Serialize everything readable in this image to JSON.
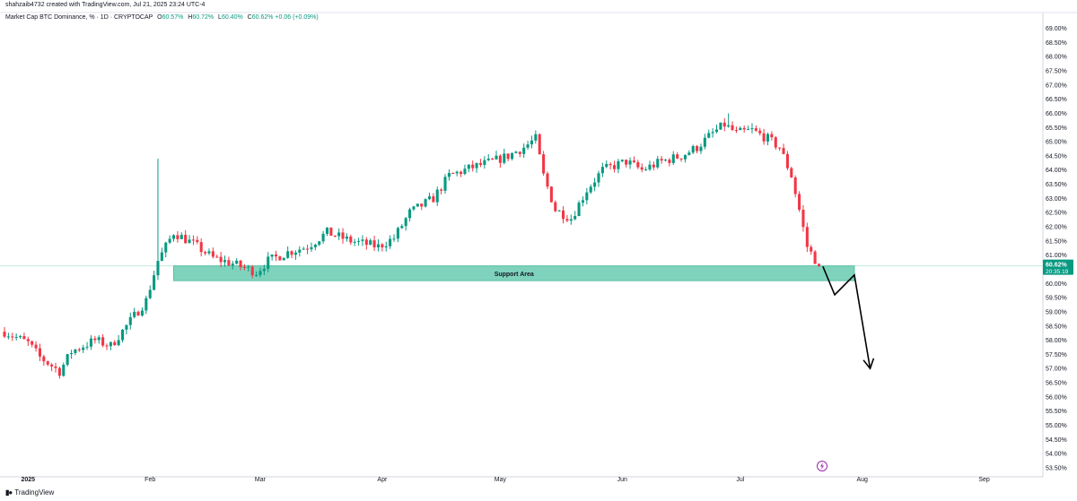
{
  "header": {
    "byline": "shahzaib4732 created with TradingView.com, Jul 21, 2025 23:24 UTC-4"
  },
  "legend": {
    "symbol": "Market Cap BTC Dominance, % · 1D · CRYPTOCAP",
    "open_label": "O",
    "open": "60.57%",
    "high_label": "H",
    "high": "60.72%",
    "low_label": "L",
    "low": "60.40%",
    "close_label": "C",
    "close": "60.62%",
    "change": "+0.06 (+0.09%)"
  },
  "price_tag": {
    "price": "60.62%",
    "countdown": "20:35:19"
  },
  "footer": {
    "brand": "TradingView"
  },
  "colors": {
    "up": "#089981",
    "down": "#f23645",
    "zone": "#7fd3bd",
    "zone_border": "#5bbfa5",
    "arrow": "#000000",
    "last_line": "#bfe7dc"
  },
  "chart_data": {
    "type": "candlestick",
    "title": "Market Cap BTC Dominance, % · 1D · CRYPTOCAP",
    "y_unit": "%",
    "ylim": [
      53.5,
      69.3
    ],
    "y_ticks": [
      "69.00%",
      "68.50%",
      "68.00%",
      "67.50%",
      "67.00%",
      "66.50%",
      "66.00%",
      "65.50%",
      "65.00%",
      "64.50%",
      "64.00%",
      "63.50%",
      "63.00%",
      "62.50%",
      "62.00%",
      "61.50%",
      "61.00%",
      "60.50%",
      "60.00%",
      "59.50%",
      "59.00%",
      "58.50%",
      "58.00%",
      "57.50%",
      "57.00%",
      "56.50%",
      "56.00%",
      "55.50%",
      "55.00%",
      "54.50%",
      "54.00%",
      "53.50%"
    ],
    "x_labels": [
      {
        "label": "2025",
        "date": "2025-01-01",
        "bold": true
      },
      {
        "label": "Feb",
        "date": "2025-02-01"
      },
      {
        "label": "Mar",
        "date": "2025-03-01"
      },
      {
        "label": "Apr",
        "date": "2025-04-01"
      },
      {
        "label": "May",
        "date": "2025-05-01"
      },
      {
        "label": "Jun",
        "date": "2025-06-01"
      },
      {
        "label": "Jul",
        "date": "2025-07-01"
      },
      {
        "label": "Aug",
        "date": "2025-08-01"
      },
      {
        "label": "Sep",
        "date": "2025-09-01"
      }
    ],
    "x_start": "2024-12-26",
    "x_end": "2025-09-15",
    "anchors": [
      [
        "2024-12-26",
        58.3
      ],
      [
        "2025-01-01",
        57.9
      ],
      [
        "2025-01-04",
        57.4
      ],
      [
        "2025-01-09",
        56.9
      ],
      [
        "2025-01-12",
        57.6
      ],
      [
        "2025-01-18",
        58.0
      ],
      [
        "2025-01-22",
        57.8
      ],
      [
        "2025-01-26",
        58.5
      ],
      [
        "2025-01-31",
        59.4
      ],
      [
        "2025-02-03",
        60.8
      ],
      [
        "2025-02-07",
        61.8
      ],
      [
        "2025-02-12",
        61.4
      ],
      [
        "2025-02-17",
        60.9
      ],
      [
        "2025-02-22",
        60.7
      ],
      [
        "2025-02-28",
        60.4
      ],
      [
        "2025-03-03",
        60.8
      ],
      [
        "2025-03-08",
        61.1
      ],
      [
        "2025-03-13",
        61.3
      ],
      [
        "2025-03-18",
        61.8
      ],
      [
        "2025-03-24",
        61.5
      ],
      [
        "2025-03-31",
        61.3
      ],
      [
        "2025-04-04",
        61.6
      ],
      [
        "2025-04-08",
        62.5
      ],
      [
        "2025-04-14",
        63.0
      ],
      [
        "2025-04-18",
        63.8
      ],
      [
        "2025-04-24",
        64.1
      ],
      [
        "2025-04-29",
        64.3
      ],
      [
        "2025-05-03",
        64.5
      ],
      [
        "2025-05-07",
        64.8
      ],
      [
        "2025-05-10",
        65.1
      ],
      [
        "2025-05-12",
        63.8
      ],
      [
        "2025-05-15",
        62.6
      ],
      [
        "2025-05-19",
        62.3
      ],
      [
        "2025-05-23",
        63.3
      ],
      [
        "2025-05-27",
        64.0
      ],
      [
        "2025-06-02",
        64.3
      ],
      [
        "2025-06-06",
        64.0
      ],
      [
        "2025-06-11",
        64.3
      ],
      [
        "2025-06-16",
        64.5
      ],
      [
        "2025-06-20",
        64.8
      ],
      [
        "2025-06-24",
        65.3
      ],
      [
        "2025-06-27",
        65.6
      ],
      [
        "2025-06-30",
        65.3
      ],
      [
        "2025-07-04",
        65.4
      ],
      [
        "2025-07-08",
        65.1
      ],
      [
        "2025-07-11",
        64.8
      ],
      [
        "2025-07-14",
        63.8
      ],
      [
        "2025-07-16",
        62.6
      ],
      [
        "2025-07-18",
        61.3
      ],
      [
        "2025-07-21",
        60.62
      ]
    ],
    "wicks": [
      {
        "date": "2025-02-03",
        "high": 64.4
      },
      {
        "date": "2025-05-10",
        "high": 65.4
      },
      {
        "date": "2025-06-28",
        "high": 66.0
      }
    ],
    "last_price": 60.62,
    "annotations": [
      {
        "type": "zone",
        "label": "Support Area",
        "x_start": "2025-02-07",
        "x_end": "2025-07-30",
        "y_low": 60.1,
        "y_high": 60.62
      },
      {
        "type": "projection_path",
        "points": [
          [
            "2025-07-22",
            60.6
          ],
          [
            "2025-07-25",
            59.6
          ],
          [
            "2025-07-30",
            60.3
          ],
          [
            "2025-08-03",
            57.0
          ]
        ]
      }
    ]
  }
}
